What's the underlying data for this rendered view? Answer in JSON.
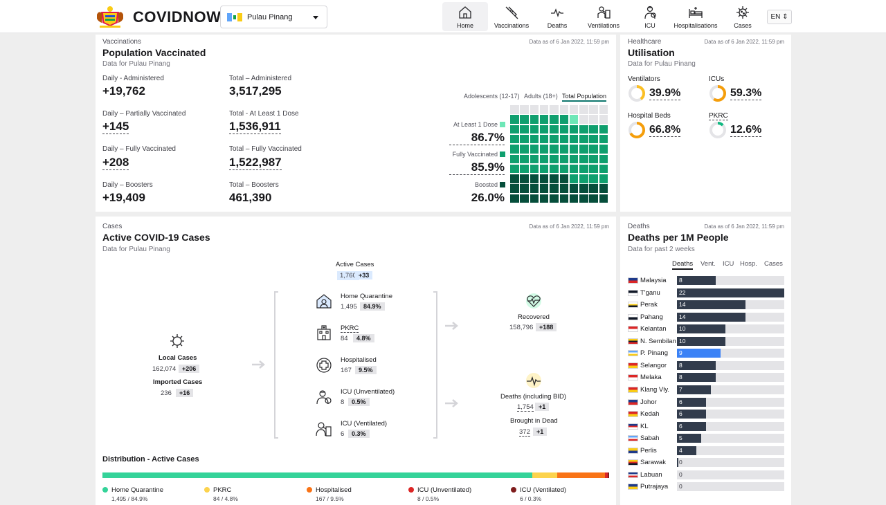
{
  "app": {
    "brand": "COVIDNOW",
    "state": "Pulau Pinang",
    "lang": "EN"
  },
  "nav": [
    {
      "label": "Home",
      "icon": "home-icon",
      "active": true
    },
    {
      "label": "Vaccinations",
      "icon": "syringe-icon"
    },
    {
      "label": "Deaths",
      "icon": "pulse-icon"
    },
    {
      "label": "Ventilations",
      "icon": "ventilator-icon"
    },
    {
      "label": "ICU",
      "icon": "icu-icon"
    },
    {
      "label": "Hospitalisations",
      "icon": "hospital-bed-icon"
    },
    {
      "label": "Cases",
      "icon": "virus-icon"
    }
  ],
  "vax": {
    "eyebrow": "Vaccinations",
    "title": "Population Vaccinated",
    "sub": "Data for Pulau Pinang",
    "asof": "Data as of 6 Jan 2022, 11:59 pm",
    "stats": [
      {
        "label": "Daily - Administered",
        "value": "+19,762"
      },
      {
        "label": "Total – Administered",
        "value": "3,517,295"
      },
      {
        "label": "Daily – Partially Vaccinated",
        "value": "+145"
      },
      {
        "label": "Total - At Least 1 Dose",
        "value": "1,536,911"
      },
      {
        "label": "Daily – Fully Vaccinated",
        "value": "+208"
      },
      {
        "label": "Total – Fully Vaccinated",
        "value": "1,522,987"
      },
      {
        "label": "Daily – Boosters",
        "value": "+19,409"
      },
      {
        "label": "Total – Boosters",
        "value": "461,390"
      }
    ],
    "tabs": [
      "Adolescents (12-17)",
      "Adults (18+)",
      "Total Population"
    ],
    "doses": [
      {
        "label": "At Least 1 Dose",
        "value": "86.7%",
        "pct": 86.7,
        "color": "#6ee7b7"
      },
      {
        "label": "Fully Vaccinated",
        "value": "85.9%",
        "pct": 85.9,
        "color": "#0f9f6e"
      },
      {
        "label": "Boosted",
        "value": "26.0%",
        "pct": 26.0,
        "color": "#064e3b"
      }
    ]
  },
  "health": {
    "eyebrow": "Healthcare",
    "title": "Utilisation",
    "sub": "Data for Pulau Pinang",
    "asof": "Data as of 6 Jan 2022, 11:59 pm",
    "items": [
      {
        "label": "Ventilators",
        "value": "39.9%",
        "pct": 39.9,
        "color": "#fbbf24"
      },
      {
        "label": "ICUs",
        "value": "59.3%",
        "pct": 59.3,
        "color": "#f59e0b"
      },
      {
        "label": "Hospital Beds",
        "value": "66.8%",
        "pct": 66.8,
        "color": "#f59e0b"
      },
      {
        "label": "PKRC",
        "value": "12.6%",
        "pct": 12.6,
        "color": "#10b981"
      }
    ]
  },
  "cases": {
    "eyebrow": "Cases",
    "title": "Active COVID-19 Cases",
    "sub": "Data for Pulau Pinang",
    "asof": "Data as of 6 Jan 2022, 11:59 pm",
    "active": {
      "label": "Active Cases",
      "value": "1,760",
      "delta": "+33"
    },
    "local": {
      "label": "Local Cases",
      "value": "162,074",
      "delta": "+206"
    },
    "imported": {
      "label": "Imported Cases",
      "value": "236",
      "delta": "+16"
    },
    "breakdown": [
      {
        "label": "Home Quarantine",
        "value": "1,495",
        "pct": "84.9%"
      },
      {
        "label": "PKRC",
        "value": "84",
        "pct": "4.8%"
      },
      {
        "label": "Hospitalised",
        "value": "167",
        "pct": "9.5%"
      },
      {
        "label": "ICU (Unventilated)",
        "value": "8",
        "pct": "0.5%"
      },
      {
        "label": "ICU (Ventilated)",
        "value": "6",
        "pct": "0.3%"
      }
    ],
    "recovered": {
      "label": "Recovered",
      "value": "158,796",
      "delta": "+188"
    },
    "deaths": {
      "label": "Deaths (including BID)",
      "value": "1,754",
      "delta": "+1"
    },
    "bid": {
      "label": "Brought in Dead",
      "value": "372",
      "delta": "+1"
    }
  },
  "distribution": {
    "title": "Distribution - Active Cases",
    "items": [
      {
        "label": "Home Quarantine",
        "value": "1,495 / 84.9%",
        "pct": 84.9,
        "color": "#34d399"
      },
      {
        "label": "PKRC",
        "value": "84 / 4.8%",
        "pct": 4.8,
        "color": "#fcd34d"
      },
      {
        "label": "Hospitalised",
        "value": "167 / 9.5%",
        "pct": 9.5,
        "color": "#f97316"
      },
      {
        "label": "ICU (Unventilated)",
        "value": "8 / 0.5%",
        "pct": 0.5,
        "color": "#dc2626"
      },
      {
        "label": "ICU (Ventilated)",
        "value": "6 / 0.3%",
        "pct": 0.3,
        "color": "#7f1d1d"
      }
    ]
  },
  "deaths1m": {
    "eyebrow": "Deaths",
    "title": "Deaths per 1M People",
    "sub": "Data for past 2 weeks",
    "asof": "Data as of 6 Jan 2022, 11:59 pm",
    "tabs": [
      "Deaths",
      "Vent.",
      "ICU",
      "Hosp.",
      "Cases"
    ],
    "max": 22,
    "rows": [
      {
        "name": "Malaysia",
        "value": 8,
        "flag": "my"
      },
      {
        "name": "T'ganu",
        "value": 22,
        "flag": "trg"
      },
      {
        "name": "Perak",
        "value": 14,
        "flag": "prk"
      },
      {
        "name": "Pahang",
        "value": 14,
        "flag": "phg"
      },
      {
        "name": "Kelantan",
        "value": 10,
        "flag": "ktn"
      },
      {
        "name": "N. Sembilan",
        "value": 10,
        "flag": "nsn"
      },
      {
        "name": "P. Pinang",
        "value": 9,
        "flag": "png",
        "highlight": true
      },
      {
        "name": "Selangor",
        "value": 8,
        "flag": "sgr"
      },
      {
        "name": "Melaka",
        "value": 8,
        "flag": "mlk"
      },
      {
        "name": "Klang Vly.",
        "value": 7,
        "flag": "kv"
      },
      {
        "name": "Johor",
        "value": 6,
        "flag": "jhr"
      },
      {
        "name": "Kedah",
        "value": 6,
        "flag": "kdh"
      },
      {
        "name": "KL",
        "value": 6,
        "flag": "kl"
      },
      {
        "name": "Sabah",
        "value": 5,
        "flag": "sbh"
      },
      {
        "name": "Perlis",
        "value": 4,
        "flag": "pls"
      },
      {
        "name": "Sarawak",
        "value": 0.3,
        "flag": "swk"
      },
      {
        "name": "Labuan",
        "value": 0,
        "flag": "lbn"
      },
      {
        "name": "Putrajaya",
        "value": 0,
        "flag": "pjy"
      }
    ]
  }
}
